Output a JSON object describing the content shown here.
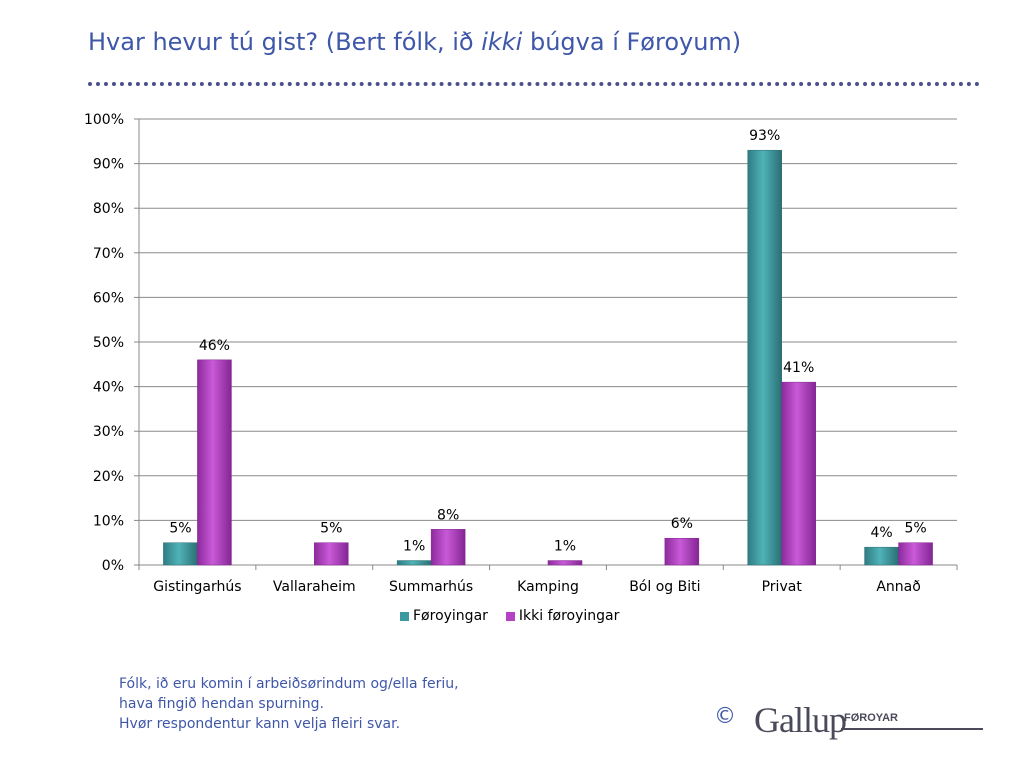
{
  "title": {
    "part1": "Hvar hevur tú gist?  (Bert fólk, ið ",
    "italic": "ikki",
    "part2": " búgva í Føroyum)"
  },
  "note": {
    "line1": "Fólk, ið eru komin í arbeiðsørindum og/ella feriu,",
    "line2": "hava fingið hendan spurning.",
    "line3": "Hvør respondentur kann velja fleiri svar."
  },
  "logo": {
    "copyright": "©",
    "brand": "Gallup",
    "sub": "FØROYAR"
  },
  "colors": {
    "series1": "#3a9aa0",
    "series2": "#b541c4",
    "title": "#3f57a8"
  },
  "chart_data": {
    "type": "bar",
    "categories": [
      "Gistingarhús",
      "Vallaraheim",
      "Summarhús",
      "Kamping",
      "Ból og Biti",
      "Privat",
      "Annað"
    ],
    "series": [
      {
        "name": "Føroyingar",
        "values": [
          5,
          null,
          1,
          null,
          null,
          93,
          4
        ],
        "labels": [
          "5%",
          "",
          "1%",
          "",
          "",
          "93%",
          "4%"
        ]
      },
      {
        "name": "Ikki føroyingar",
        "values": [
          46,
          5,
          8,
          1,
          6,
          41,
          5
        ],
        "labels": [
          "46%",
          "5%",
          "8%",
          "1%",
          "6%",
          "41%",
          "5%"
        ]
      }
    ],
    "yticks": [
      "0%",
      "10%",
      "20%",
      "30%",
      "40%",
      "50%",
      "60%",
      "70%",
      "80%",
      "90%",
      "100%"
    ],
    "ylim": [
      0,
      100
    ],
    "grid": true,
    "legend_position": "bottom"
  }
}
